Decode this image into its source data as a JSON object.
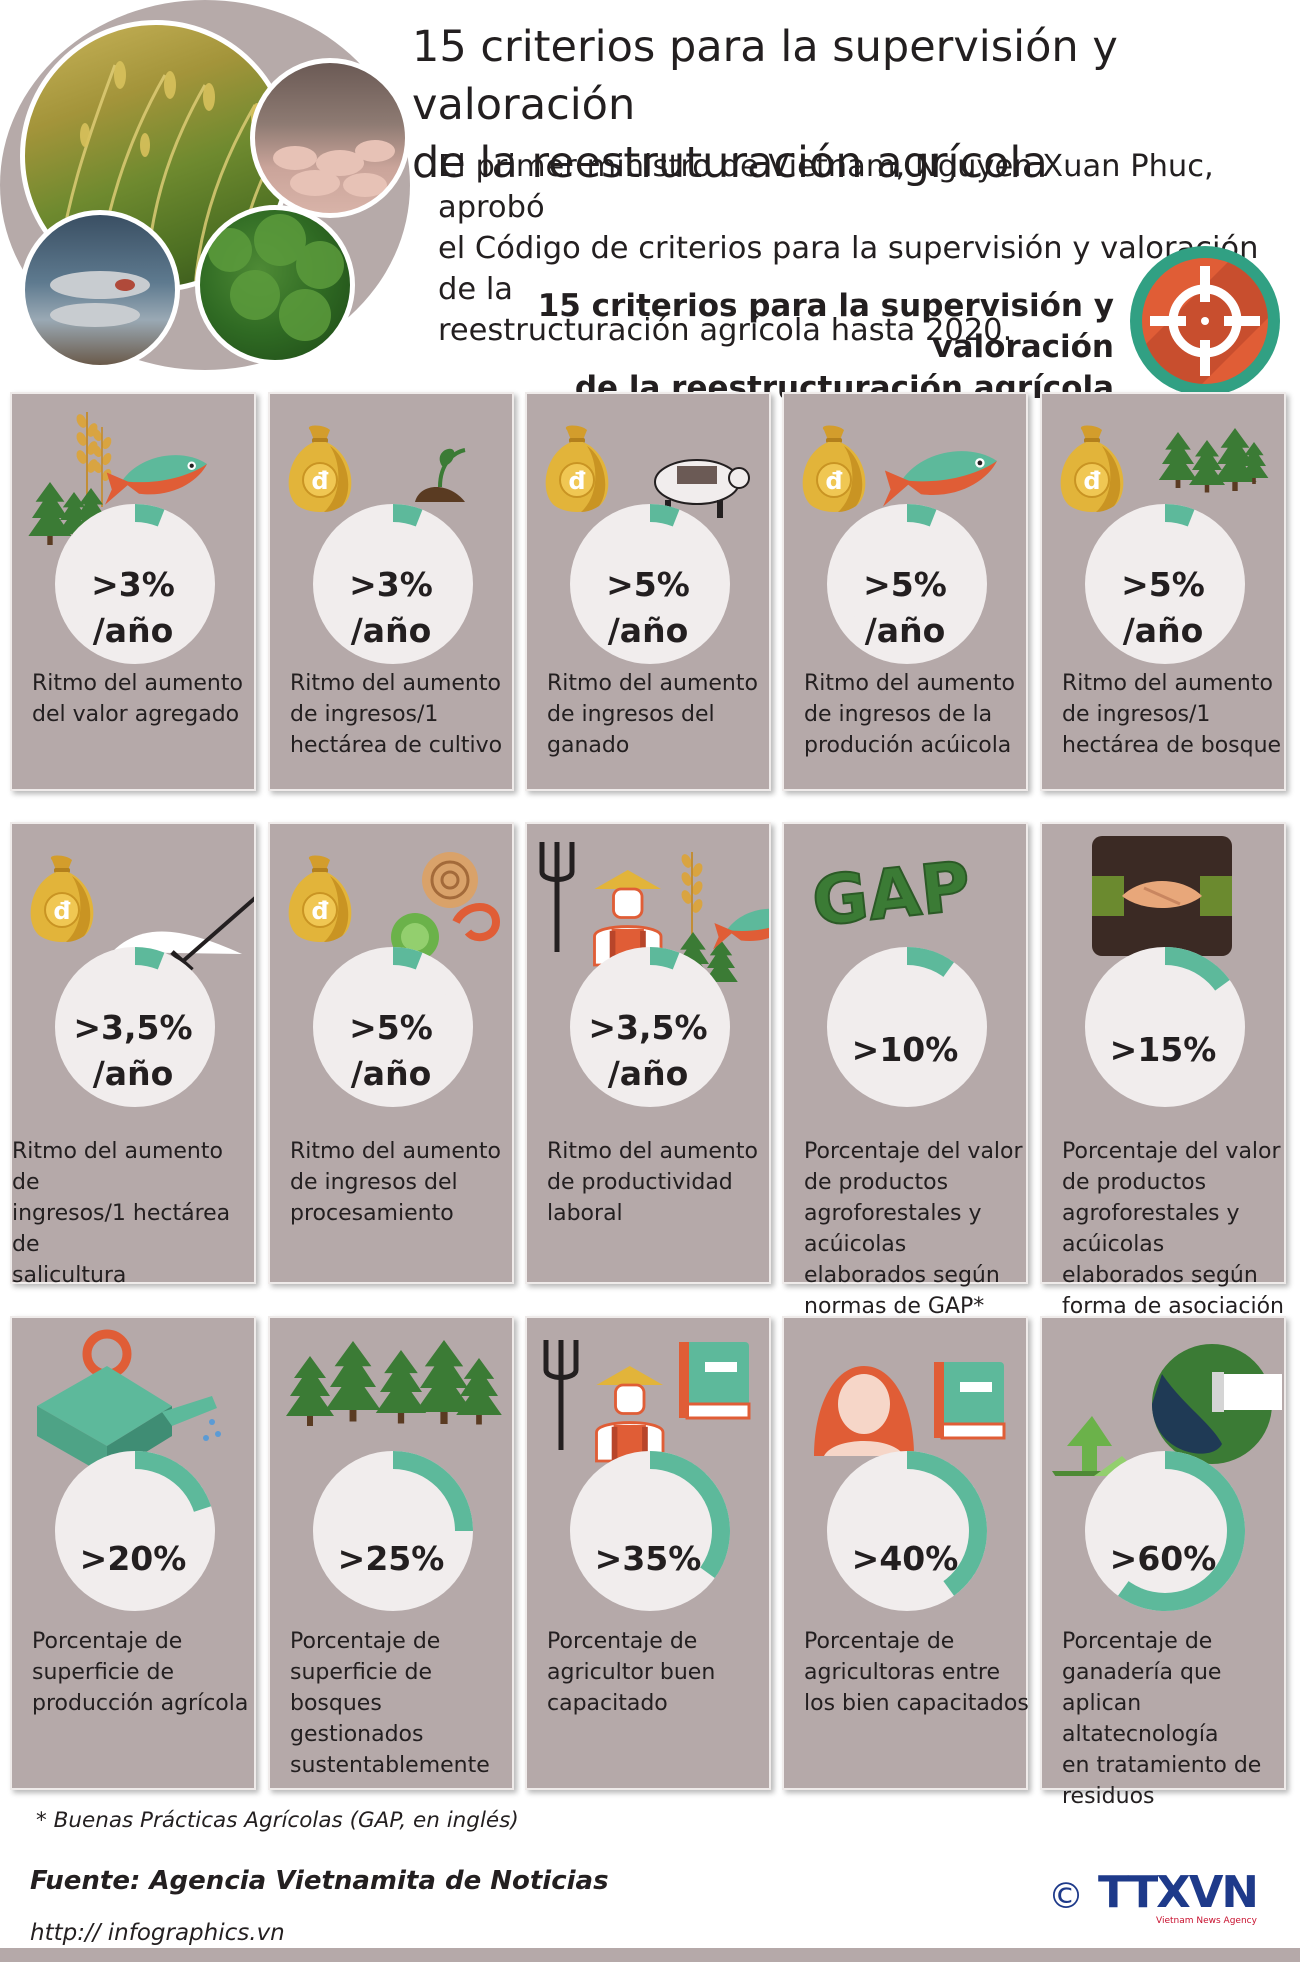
{
  "header": {
    "title_line1": "15 criterios para la supervisión y valoración",
    "title_line2": "de la reestruturación agrícola",
    "intro_line1": "El primer ministro de Vietnam, Nguyen Xuan Phuc, aprobó",
    "intro_line2": "el Código de criterios para la supervisión y valoración de la",
    "intro_line3": "reestructuración agrícola hasta 2020.",
    "subtitle_line1": "15 criterios para la supervisión y valoración",
    "subtitle_line2": "de la reestructuración agrícola"
  },
  "colors": {
    "card": "#b5a9a9",
    "accent": "#5db99b",
    "wheel": "#f1eded",
    "gold": "#e2b43a",
    "orange": "#e05d36",
    "green": "#3b7b35"
  },
  "criteria": [
    {
      "value_line1": ">3%",
      "value_line2": "/año",
      "fraction": 0.03,
      "icons": [
        "wheat-icon",
        "trees-icon",
        "fish-icon"
      ],
      "desc_line1": "Ritmo del aumento",
      "desc_line2": "del valor agregado",
      "desc_line3": ""
    },
    {
      "value_line1": ">3%",
      "value_line2": "/año",
      "fraction": 0.03,
      "icons": [
        "money-bag-icon",
        "sprout-icon"
      ],
      "money_symbol": "đ",
      "desc_line1": "Ritmo del aumento",
      "desc_line2": "de ingresos/1",
      "desc_line3": "hectárea de cultivo"
    },
    {
      "value_line1": ">5%",
      "value_line2": "/año",
      "fraction": 0.05,
      "icons": [
        "money-bag-icon",
        "pig-icon"
      ],
      "money_symbol": "đ",
      "desc_line1": "Ritmo del aumento",
      "desc_line2": "de ingresos del",
      "desc_line3": "ganado"
    },
    {
      "value_line1": ">5%",
      "value_line2": "/año",
      "fraction": 0.05,
      "icons": [
        "money-bag-icon",
        "fish-icon"
      ],
      "money_symbol": "đ",
      "desc_line1": "Ritmo del aumento",
      "desc_line2": "de ingresos de la",
      "desc_line3": "produción acúicola"
    },
    {
      "value_line1": ">5%",
      "value_line2": "/año",
      "fraction": 0.05,
      "icons": [
        "money-bag-icon",
        "trees-icon"
      ],
      "money_symbol": "đ",
      "desc_line1": "Ritmo del aumento",
      "desc_line2": "de ingresos/1",
      "desc_line3": "hectárea de bosque"
    },
    {
      "value_line1": ">3,5%",
      "value_line2": "/año",
      "fraction": 0.035,
      "icons": [
        "money-bag-icon",
        "salt-rake-icon"
      ],
      "money_symbol": "đ",
      "desc_line1": "Ritmo del aumento de",
      "desc_line2": "ingresos/1 hectárea de",
      "desc_line3": "salicultura"
    },
    {
      "value_line1": ">5%",
      "value_line2": "/año",
      "fraction": 0.05,
      "icons": [
        "money-bag-icon",
        "log-icon",
        "lettuce-icon",
        "shrimp-icon"
      ],
      "money_symbol": "đ",
      "desc_line1": "Ritmo del aumento",
      "desc_line2": "de ingresos del",
      "desc_line3": "procesamiento"
    },
    {
      "value_line1": ">3,5%",
      "value_line2": "/año",
      "fraction": 0.035,
      "icons": [
        "farmer-icon",
        "pitchfork-icon",
        "wheat-icon",
        "fish-icon"
      ],
      "desc_line1": "Ritmo del aumento",
      "desc_line2": "de productividad",
      "desc_line3": "laboral"
    },
    {
      "value_line1": ">10%",
      "value_line2": "",
      "fraction": 0.1,
      "icons": [
        "gap-logo-icon"
      ],
      "gap_text": "GAP",
      "desc_line1": "Porcentaje del valor",
      "desc_line2": "de productos",
      "desc_line3": "agroforestales y",
      "desc_line4": "acúicolas",
      "desc_line5": "elaborados según",
      "desc_line6": "normas de GAP*"
    },
    {
      "value_line1": ">15%",
      "value_line2": "",
      "fraction": 0.15,
      "icons": [
        "handshake-icon"
      ],
      "desc_line1": "Porcentaje del valor",
      "desc_line2": "de productos",
      "desc_line3": "agroforestales y",
      "desc_line4": "acúicolas",
      "desc_line5": "elaborados según",
      "desc_line6": "forma de asociación"
    },
    {
      "value_line1": ">20%",
      "value_line2": "",
      "fraction": 0.2,
      "icons": [
        "watering-can-icon"
      ],
      "desc_line1": "Porcentaje de",
      "desc_line2": "superficie de",
      "desc_line3": "producción agrícola"
    },
    {
      "value_line1": ">25%",
      "value_line2": "",
      "fraction": 0.25,
      "icons": [
        "trees-icon"
      ],
      "desc_line1": "Porcentaje de",
      "desc_line2": "superficie de",
      "desc_line3": "bosques",
      "desc_line4": "gestionados",
      "desc_line5": "sustentablemente"
    },
    {
      "value_line1": ">35%",
      "value_line2": "",
      "fraction": 0.35,
      "icons": [
        "farmer-icon",
        "pitchfork-icon",
        "book-icon"
      ],
      "desc_line1": "Porcentaje de",
      "desc_line2": "agricultor buen",
      "desc_line3": "capacitado"
    },
    {
      "value_line1": ">40%",
      "value_line2": "",
      "fraction": 0.4,
      "icons": [
        "woman-icon",
        "book-icon"
      ],
      "desc_line1": "Porcentaje de",
      "desc_line2": "agricultoras entre",
      "desc_line3": "los bien capacitados"
    },
    {
      "value_line1": ">60%",
      "value_line2": "",
      "fraction": 0.6,
      "icons": [
        "recycle-icon",
        "pipe-icon"
      ],
      "desc_line1": "Porcentaje de",
      "desc_line2": "ganadería que",
      "desc_line3": "aplican",
      "desc_line4": "altatecnología",
      "desc_line5": "en tratamiento de",
      "desc_line6": "residuos"
    }
  ],
  "footer": {
    "note": "* Buenas Prácticas Agrícolas (GAP, en inglés)",
    "source": "Fuente: Agencia Vietnamita de Noticias",
    "url": "http:// infographics.vn",
    "copyright": "©",
    "logo_text": "TTXVN",
    "logo_subtext": "Vietnam News Agency"
  }
}
